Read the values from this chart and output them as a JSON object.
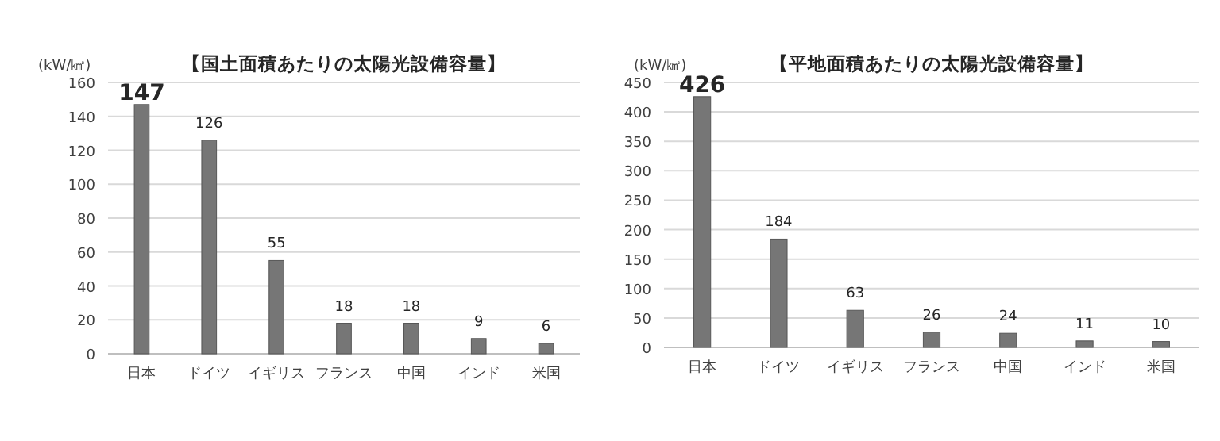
{
  "chart_data": [
    {
      "type": "bar",
      "title": "【国土面積あたりの太陽光設備容量】",
      "ylabel": "(kW/㎢)",
      "categories": [
        "日本",
        "ドイツ",
        "イギリス",
        "フランス",
        "中国",
        "インド",
        "米国"
      ],
      "values": [
        147,
        126,
        55,
        18,
        18,
        9,
        6
      ],
      "color": "#767676",
      "ylim": [
        0,
        160
      ],
      "yticks": [
        0,
        20,
        40,
        60,
        80,
        100,
        120,
        140,
        160
      ],
      "grid": "y",
      "data_labels": true
    },
    {
      "type": "bar",
      "title": "【平地面積あたりの太陽光設備容量】",
      "ylabel": "(kW/㎢)",
      "categories": [
        "日本",
        "ドイツ",
        "イギリス",
        "フランス",
        "中国",
        "インド",
        "米国"
      ],
      "values": [
        426,
        184,
        63,
        26,
        24,
        11,
        10
      ],
      "color": "#767676",
      "ylim": [
        0,
        450
      ],
      "yticks": [
        0,
        50,
        100,
        150,
        200,
        250,
        300,
        350,
        400,
        450
      ],
      "grid": "y",
      "data_labels": true
    }
  ]
}
